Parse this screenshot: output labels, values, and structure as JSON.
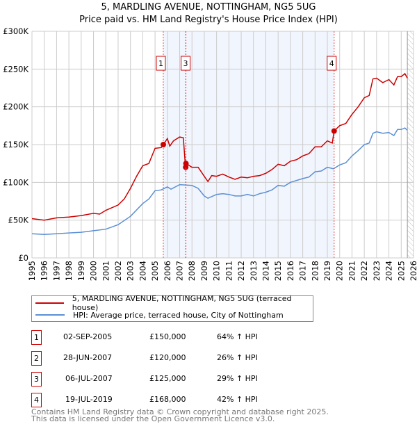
{
  "title": "5, MARDLING AVENUE, NOTTINGHAM, NG5 5UG",
  "subtitle": "Price paid vs. HM Land Registry's House Price Index (HPI)",
  "chart_data": {
    "type": "line",
    "title": "5, MARDLING AVENUE, NOTTINGHAM, NG5 5UG",
    "subtitle": "Price paid vs. HM Land Registry's House Price Index (HPI)",
    "xlim": [
      1995,
      2026
    ],
    "ylim": [
      0,
      300000
    ],
    "x_ticks": [
      "1995",
      "1996",
      "1997",
      "1998",
      "1999",
      "2000",
      "2001",
      "2002",
      "2003",
      "2004",
      "2005",
      "2006",
      "2007",
      "2008",
      "2009",
      "2010",
      "2011",
      "2012",
      "2013",
      "2014",
      "2015",
      "2016",
      "2017",
      "2018",
      "2019",
      "2020",
      "2021",
      "2022",
      "2023",
      "2024",
      "2025",
      "2026"
    ],
    "y_ticks": [
      {
        "v": 0,
        "label": "£0"
      },
      {
        "v": 50000,
        "label": "£50K"
      },
      {
        "v": 100000,
        "label": "£100K"
      },
      {
        "v": 150000,
        "label": "£150K"
      },
      {
        "v": 200000,
        "label": "£200K"
      },
      {
        "v": 250000,
        "label": "£250K"
      },
      {
        "v": 300000,
        "label": "£300K"
      }
    ],
    "grid": true,
    "shaded_range": [
      2005.67,
      2019.55
    ],
    "forecast_hatch_from": 2025.5,
    "series": [
      {
        "name": "5, MARDLING AVENUE, NOTTINGHAM, NG5 5UG (terraced house)",
        "color": "#cc0000",
        "x": [
          1995,
          1996,
          1997,
          1998,
          1999,
          2000,
          2000.5,
          2001,
          2002,
          2002.5,
          2003,
          2003.5,
          2004,
          2004.5,
          2005,
          2005.5,
          2005.67,
          2006,
          2006.2,
          2006.5,
          2007,
          2007.3,
          2007.45,
          2007.49,
          2007.52,
          2008,
          2008.5,
          2009,
          2009.3,
          2009.6,
          2010,
          2010.5,
          2011,
          2011.5,
          2012,
          2012.5,
          2013,
          2013.5,
          2014,
          2014.5,
          2015,
          2015.5,
          2016,
          2016.5,
          2017,
          2017.5,
          2018,
          2018.5,
          2019,
          2019.4,
          2019.55,
          2020,
          2020.5,
          2021,
          2021.5,
          2022,
          2022.4,
          2022.7,
          2023,
          2023.5,
          2024,
          2024.4,
          2024.7,
          2025,
          2025.3,
          2025.5
        ],
        "y": [
          52000,
          50000,
          53000,
          54000,
          56000,
          59000,
          58000,
          63000,
          70000,
          78000,
          92000,
          108000,
          122000,
          125000,
          145000,
          146000,
          150000,
          158000,
          148000,
          155000,
          160000,
          159000,
          125000,
          120000,
          125000,
          120000,
          120000,
          108000,
          101000,
          109000,
          108000,
          111000,
          107000,
          104000,
          107000,
          106000,
          108000,
          109000,
          112000,
          117000,
          124000,
          122000,
          128000,
          130000,
          135000,
          138000,
          147000,
          147000,
          155000,
          152000,
          168000,
          175000,
          178000,
          190000,
          200000,
          212000,
          215000,
          237000,
          238000,
          232000,
          236000,
          229000,
          240000,
          240000,
          244000,
          238000
        ]
      },
      {
        "name": "HPI: Average price, terraced house, City of Nottingham",
        "color": "#5b8fd4",
        "x": [
          1995,
          1996,
          1997,
          1998,
          1999,
          2000,
          2001,
          2002,
          2003,
          2004,
          2004.5,
          2005,
          2005.5,
          2006,
          2006.3,
          2007,
          2008,
          2008.5,
          2009,
          2009.3,
          2010,
          2010.5,
          2011,
          2011.5,
          2012,
          2012.5,
          2013,
          2013.5,
          2014,
          2014.5,
          2015,
          2015.5,
          2016,
          2017,
          2017.5,
          2018,
          2018.5,
          2019,
          2019.5,
          2020,
          2020.5,
          2021,
          2021.5,
          2022,
          2022.4,
          2022.7,
          2023,
          2023.5,
          2024,
          2024.4,
          2024.7,
          2025,
          2025.3,
          2025.5
        ],
        "y": [
          32000,
          31000,
          32000,
          33000,
          34000,
          36000,
          38000,
          44000,
          55000,
          72000,
          78000,
          89000,
          90000,
          94000,
          91000,
          97000,
          96000,
          92000,
          82000,
          79000,
          84000,
          85000,
          84000,
          82000,
          82000,
          84000,
          82000,
          85000,
          87000,
          90000,
          96000,
          95000,
          100000,
          105000,
          107000,
          114000,
          115000,
          120000,
          118000,
          123000,
          126000,
          135000,
          142000,
          150000,
          152000,
          165000,
          167000,
          165000,
          166000,
          162000,
          170000,
          170000,
          172000,
          169000
        ]
      }
    ],
    "sales": [
      {
        "label": "1",
        "x": 2005.67,
        "date": "02-SEP-2005",
        "price": 150000,
        "price_text": "£150,000",
        "hpi": "64% ↑ HPI"
      },
      {
        "label": "2",
        "x": 2007.49,
        "date": "28-JUN-2007",
        "price": 120000,
        "price_text": "£120,000",
        "hpi": "26% ↑ HPI"
      },
      {
        "label": "3",
        "x": 2007.51,
        "date": "06-JUL-2007",
        "price": 125000,
        "price_text": "£125,000",
        "hpi": "29% ↑ HPI"
      },
      {
        "label": "4",
        "x": 2019.55,
        "date": "19-JUL-2019",
        "price": 168000,
        "price_text": "£168,000",
        "hpi": "42% ↑ HPI"
      }
    ]
  },
  "footer": {
    "line1": "Contains HM Land Registry data © Crown copyright and database right 2025.",
    "line2": "This data is licensed under the Open Government Licence v3.0."
  }
}
